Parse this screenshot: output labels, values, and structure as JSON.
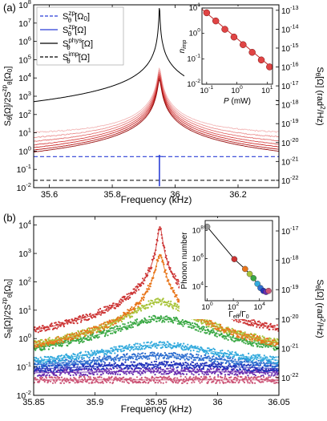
{
  "chart_data": [
    {
      "panel": "(a)",
      "type": "line",
      "xlabel": "Frequency (kHz)",
      "ylabel_left": "S_θ[Ω]/2S_θ^zp[Ω_0]",
      "ylabel_right": "S_θ[Ω] (rad²/Hz)",
      "xlim": [
        35.55,
        36.33
      ],
      "ylim_left": [
        0.01,
        100000000
      ],
      "ylim_right": [
        1e-22,
        1e-13
      ],
      "yscale": "log",
      "x_ticks": [
        35.6,
        35.8,
        36,
        36.2
      ],
      "y_ticks_left": [
        "10^-2",
        "10^-1",
        "10^0",
        "10^1",
        "10^2",
        "10^3",
        "10^4",
        "10^5",
        "10^6",
        "10^7",
        "10^8"
      ],
      "y_ticks_right": [
        "10^-22",
        "10^-21",
        "10^-20",
        "10^-19",
        "10^-18",
        "10^-17",
        "10^-16",
        "10^-15",
        "10^-14",
        "10^-13"
      ],
      "resonance_khz": 35.95,
      "legend": [
        {
          "label": "S_θ^zp[Ω_0]",
          "color": "#2b3fd6",
          "style": "dashed"
        },
        {
          "label": "S_θ^zp[Ω]",
          "color": "#2b3fd6",
          "style": "solid"
        },
        {
          "label": "S_θ^phys[Ω]",
          "color": "#000000",
          "style": "solid"
        },
        {
          "label": "S_θ^imp[Ω]",
          "color": "#000000",
          "style": "dashed"
        }
      ],
      "legend_position": "top-left",
      "reference_lines": {
        "zp_level": 0.5,
        "imp_level": 0.025,
        "phys_peak": 100000000
      },
      "noise_floors": [
        {
          "level": 7,
          "color": "#f2b6b6"
        },
        {
          "level": 3,
          "color": "#ec9494"
        },
        {
          "level": 1.3,
          "color": "#e47070"
        },
        {
          "level": 0.55,
          "color": "#d84a4a"
        },
        {
          "level": 0.25,
          "color": "#cc2a2a"
        },
        {
          "level": 0.11,
          "color": "#b51616"
        },
        {
          "level": 0.055,
          "color": "#960c0c"
        }
      ],
      "inset": {
        "xlabel": "P (mW)",
        "ylabel": "n_imp",
        "xlim": [
          0.07,
          15
        ],
        "ylim": [
          0.01,
          10
        ],
        "xscale": "log",
        "yscale": "log",
        "x_ticks": [
          "10^-1",
          "10^0",
          "10^1"
        ],
        "y_ticks": [
          "10^-2",
          "10^-1",
          "10^0",
          "10^1"
        ],
        "points": [
          {
            "x": 0.1,
            "y": 6.5
          },
          {
            "x": 0.2,
            "y": 3.1
          },
          {
            "x": 0.4,
            "y": 1.45
          },
          {
            "x": 0.8,
            "y": 0.72
          },
          {
            "x": 1.6,
            "y": 0.36
          },
          {
            "x": 3.2,
            "y": 0.18
          },
          {
            "x": 6.4,
            "y": 0.09
          },
          {
            "x": 12,
            "y": 0.048
          }
        ],
        "fit": {
          "x": [
            0.07,
            15
          ],
          "y": [
            9.0,
            0.042
          ]
        },
        "point_color": "#e04444",
        "line_color": "#c02020"
      }
    },
    {
      "panel": "(b)",
      "type": "scatter",
      "xlabel": "Frequency (kHz)",
      "ylabel_left": "S_θ[Ω]/2S_θ^zp[Ω_0]",
      "ylabel_right": "S_θ[Ω] (rad²/Hz)",
      "xlim": [
        35.85,
        36.05
      ],
      "ylim_left": [
        0.01,
        20000
      ],
      "ylim_right": [
        1e-22,
        1e-17
      ],
      "yscale": "log",
      "x_ticks": [
        35.85,
        35.9,
        35.95,
        36,
        36.05
      ],
      "y_ticks_left": [
        "10^-2",
        "10^-1",
        "10^0",
        "10^1",
        "10^2",
        "10^3",
        "10^4"
      ],
      "y_ticks_right": [
        "10^-22",
        "10^-21",
        "10^-20",
        "10^-19",
        "10^-18",
        "10^-17"
      ],
      "center_khz": 35.953,
      "series": [
        {
          "peak": 9000,
          "floor": 0.06,
          "width_khz": 0.0015,
          "color": "#cc3333"
        },
        {
          "peak": 900,
          "floor": 0.06,
          "width_khz": 0.0025,
          "color": "#e8751a"
        },
        {
          "peak": 20,
          "floor": 0.06,
          "width_khz": 0.018,
          "color": "#a8c43a"
        },
        {
          "peak": 5,
          "floor": 0.06,
          "width_khz": 0.03,
          "color": "#3aa844"
        },
        {
          "peak": 0.6,
          "floor": 0.08,
          "width_khz": 0.045,
          "color": "#33aadd"
        },
        {
          "peak": 0.25,
          "floor": 0.075,
          "width_khz": 0.06,
          "color": "#2f6fd0"
        },
        {
          "peak": 0.12,
          "floor": 0.065,
          "width_khz": 0.08,
          "color": "#2233bb"
        },
        {
          "peak": 0.07,
          "floor": 0.055,
          "width_khz": 0.1,
          "color": "#6a2fb0"
        },
        {
          "peak": 0.035,
          "floor": 0.035,
          "width_khz": 0.1,
          "color": "#cc5577"
        }
      ],
      "inset": {
        "xlabel": "Γ_eff/Γ_0",
        "ylabel": "Phonon number",
        "xlim": [
          0.7,
          100000
        ],
        "ylim": [
          1000,
          500000000
        ],
        "xscale": "log",
        "yscale": "log",
        "x_ticks": [
          "10^0",
          "10^2",
          "10^4"
        ],
        "y_ticks": [
          "10^4",
          "10^6",
          "10^8"
        ],
        "points": [
          {
            "x": 1,
            "y": 180000000,
            "color": "#999999"
          },
          {
            "x": 120,
            "y": 900000,
            "color": "#cc3333"
          },
          {
            "x": 800,
            "y": 180000,
            "color": "#e8751a"
          },
          {
            "x": 1800,
            "y": 80000,
            "color": "#a8c43a"
          },
          {
            "x": 3500,
            "y": 40000,
            "color": "#3aa844"
          },
          {
            "x": 7000,
            "y": 16000,
            "color": "#33aadd"
          },
          {
            "x": 12000,
            "y": 8000,
            "color": "#2f6fd0"
          },
          {
            "x": 20000,
            "y": 5000,
            "color": "#2233bb"
          },
          {
            "x": 32000,
            "y": 4200,
            "color": "#6a2fb0"
          },
          {
            "x": 50000,
            "y": 5000,
            "color": "#cc5577"
          }
        ],
        "fit_x": [
          1,
          120,
          800,
          3500,
          12000,
          25000,
          45000,
          70000
        ],
        "fit_y": [
          180000000,
          900000,
          180000,
          40000,
          8000,
          4500,
          4200,
          5000
        ]
      }
    }
  ]
}
